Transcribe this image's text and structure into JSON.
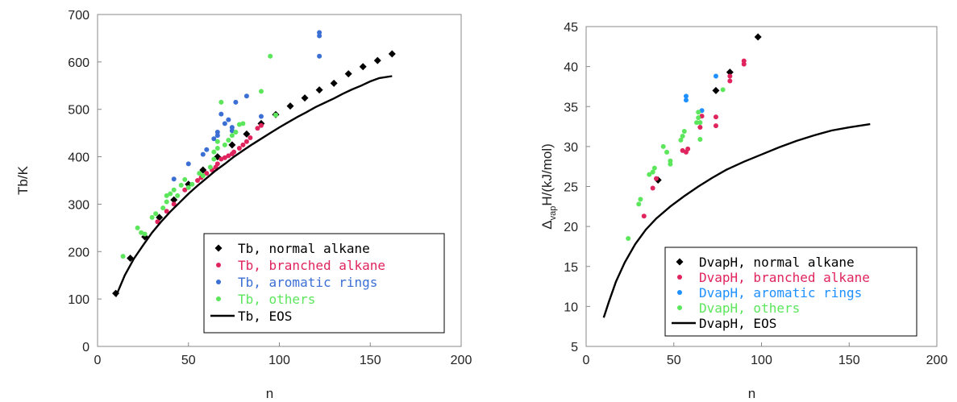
{
  "chart_data": [
    {
      "id": "tb",
      "type": "scatter",
      "xlabel": "n",
      "ylabel": "Tb/K",
      "xlim": [
        0,
        200
      ],
      "ylim": [
        0,
        700
      ],
      "xticks": [
        0,
        50,
        100,
        150,
        200
      ],
      "yticks": [
        0,
        100,
        200,
        300,
        400,
        500,
        600,
        700
      ],
      "legend_position": "bottom-right",
      "series": [
        {
          "name": "Tb, normal alkane",
          "marker": "diamond",
          "color": "#000000",
          "points": [
            [
              10,
              112
            ],
            [
              18,
              186
            ],
            [
              26,
              231
            ],
            [
              34,
              272
            ],
            [
              42,
              309
            ],
            [
              50,
              342
            ],
            [
              58,
              372
            ],
            [
              66,
              400
            ],
            [
              74,
              425
            ],
            [
              82,
              448
            ],
            [
              90,
              470
            ],
            [
              98,
              489
            ],
            [
              106,
              507
            ],
            [
              114,
              524
            ],
            [
              122,
              541
            ],
            [
              130,
              555
            ],
            [
              138,
              575
            ],
            [
              146,
              590
            ],
            [
              154,
              603
            ],
            [
              162,
              617
            ]
          ]
        },
        {
          "name": "Tb, branched alkane",
          "marker": "circle",
          "color": "#e0245e",
          "points": [
            [
              33,
              263
            ],
            [
              38,
              285
            ],
            [
              42,
              300
            ],
            [
              48,
              330
            ],
            [
              55,
              350
            ],
            [
              57,
              356
            ],
            [
              60,
              365
            ],
            [
              63,
              372
            ],
            [
              65,
              378
            ],
            [
              66,
              385
            ],
            [
              68,
              395
            ],
            [
              70,
              398
            ],
            [
              72,
              402
            ],
            [
              74,
              406
            ],
            [
              75,
              410
            ],
            [
              78,
              418
            ],
            [
              80,
              425
            ],
            [
              82,
              432
            ],
            [
              84,
              440
            ],
            [
              88,
              460
            ],
            [
              90,
              466
            ]
          ]
        },
        {
          "name": "Tb, aromatic rings",
          "marker": "circle",
          "color": "#3b6fd4",
          "points": [
            [
              42,
              353
            ],
            [
              50,
              385
            ],
            [
              58,
              405
            ],
            [
              60,
              415
            ],
            [
              64,
              438
            ],
            [
              66,
              445
            ],
            [
              66,
              452
            ],
            [
              68,
              490
            ],
            [
              70,
              470
            ],
            [
              72,
              478
            ],
            [
              74,
              455
            ],
            [
              74,
              462
            ],
            [
              76,
              515
            ],
            [
              82,
              528
            ],
            [
              90,
              485
            ],
            [
              122,
              612
            ],
            [
              122,
              655
            ],
            [
              122,
              662
            ]
          ]
        },
        {
          "name": "Tb, others",
          "marker": "circle",
          "color": "#5ce65c",
          "points": [
            [
              14,
              190
            ],
            [
              22,
              250
            ],
            [
              24,
              240
            ],
            [
              26,
              237
            ],
            [
              30,
              272
            ],
            [
              32,
              280
            ],
            [
              36,
              292
            ],
            [
              38,
              305
            ],
            [
              38,
              318
            ],
            [
              40,
              322
            ],
            [
              42,
              330
            ],
            [
              44,
              318
            ],
            [
              46,
              340
            ],
            [
              48,
              352
            ],
            [
              50,
              335
            ],
            [
              52,
              342
            ],
            [
              56,
              365
            ],
            [
              58,
              360
            ],
            [
              62,
              378
            ],
            [
              64,
              395
            ],
            [
              64,
              410
            ],
            [
              66,
              418
            ],
            [
              66,
              432
            ],
            [
              68,
              515
            ],
            [
              70,
              425
            ],
            [
              72,
              435
            ],
            [
              74,
              445
            ],
            [
              76,
              452
            ],
            [
              78,
              468
            ],
            [
              80,
              470
            ],
            [
              90,
              538
            ],
            [
              95,
              612
            ],
            [
              98,
              488
            ]
          ]
        },
        {
          "name": "Tb, EOS",
          "marker": "line",
          "color": "#000000",
          "points": [
            [
              10,
              105
            ],
            [
              15,
              150
            ],
            [
              20,
              185
            ],
            [
              25,
              213
            ],
            [
              30,
              240
            ],
            [
              35,
              263
            ],
            [
              40,
              284
            ],
            [
              45,
              303
            ],
            [
              50,
              322
            ],
            [
              55,
              339
            ],
            [
              60,
              355
            ],
            [
              65,
              371
            ],
            [
              70,
              385
            ],
            [
              75,
              400
            ],
            [
              80,
              413
            ],
            [
              85,
              426
            ],
            [
              90,
              438
            ],
            [
              95,
              450
            ],
            [
              100,
              462
            ],
            [
              105,
              473
            ],
            [
              110,
              484
            ],
            [
              115,
              494
            ],
            [
              120,
              505
            ],
            [
              125,
              514
            ],
            [
              130,
              523
            ],
            [
              135,
              533
            ],
            [
              140,
              542
            ],
            [
              145,
              550
            ],
            [
              150,
              559
            ],
            [
              155,
              566
            ],
            [
              162,
              570
            ]
          ]
        }
      ]
    },
    {
      "id": "dvaph",
      "type": "scatter",
      "xlabel": "n",
      "ylabel_main": "Δ",
      "ylabel_sub": "vap",
      "ylabel_rest": "H/(kJ/mol)",
      "xlim": [
        0,
        200
      ],
      "ylim": [
        5,
        45
      ],
      "xticks": [
        0,
        50,
        100,
        150,
        200
      ],
      "yticks": [
        5,
        10,
        15,
        20,
        25,
        30,
        35,
        40,
        45
      ],
      "legend_position": "bottom-right",
      "series": [
        {
          "name": "DvapH, normal alkane",
          "marker": "diamond",
          "color": "#000000",
          "points": [
            [
              41,
              25.8
            ],
            [
              74,
              37.0
            ],
            [
              82,
              39.3
            ],
            [
              98,
              43.7
            ]
          ]
        },
        {
          "name": "DvapH, branched alkane",
          "marker": "circle",
          "color": "#e0245e",
          "points": [
            [
              33,
              21.3
            ],
            [
              38,
              24.8
            ],
            [
              40,
              26.0
            ],
            [
              55,
              29.5
            ],
            [
              57,
              29.3
            ],
            [
              58,
              29.7
            ],
            [
              65,
              32.4
            ],
            [
              66,
              33.8
            ],
            [
              74,
              32.6
            ],
            [
              74,
              33.7
            ],
            [
              82,
              38.2
            ],
            [
              82,
              38.8
            ],
            [
              90,
              40.3
            ],
            [
              90,
              40.7
            ]
          ]
        },
        {
          "name": "DvapH, aromatic rings",
          "marker": "circle",
          "color": "#1e90ff",
          "points": [
            [
              57,
              35.8
            ],
            [
              57,
              36.3
            ],
            [
              74,
              38.8
            ],
            [
              66,
              34.5
            ]
          ]
        },
        {
          "name": "DvapH, others",
          "marker": "circle",
          "color": "#5ce65c",
          "points": [
            [
              24,
              18.5
            ],
            [
              30,
              22.8
            ],
            [
              31,
              23.4
            ],
            [
              36,
              26.5
            ],
            [
              38,
              26.8
            ],
            [
              39,
              27.3
            ],
            [
              44,
              30.0
            ],
            [
              46,
              29.3
            ],
            [
              48,
              27.8
            ],
            [
              48,
              28.2
            ],
            [
              54,
              30.8
            ],
            [
              55,
              31.3
            ],
            [
              56,
              31.9
            ],
            [
              63,
              33.0
            ],
            [
              64,
              33.6
            ],
            [
              64,
              34.3
            ],
            [
              65,
              30.9
            ],
            [
              65,
              33.0
            ],
            [
              78,
              37.1
            ]
          ]
        },
        {
          "name": "DvapH, EOS",
          "marker": "line",
          "color": "#000000",
          "points": [
            [
              10,
              8.6
            ],
            [
              13,
              10.6
            ],
            [
              17,
              13.1
            ],
            [
              22,
              15.5
            ],
            [
              28,
              17.8
            ],
            [
              34,
              19.6
            ],
            [
              40,
              21.0
            ],
            [
              48,
              22.5
            ],
            [
              56,
              23.8
            ],
            [
              64,
              25.0
            ],
            [
              72,
              26.1
            ],
            [
              80,
              27.1
            ],
            [
              90,
              28.1
            ],
            [
              100,
              29.0
            ],
            [
              110,
              29.9
            ],
            [
              120,
              30.7
            ],
            [
              130,
              31.4
            ],
            [
              140,
              32.0
            ],
            [
              150,
              32.4
            ],
            [
              162,
              32.8
            ]
          ]
        }
      ]
    }
  ]
}
